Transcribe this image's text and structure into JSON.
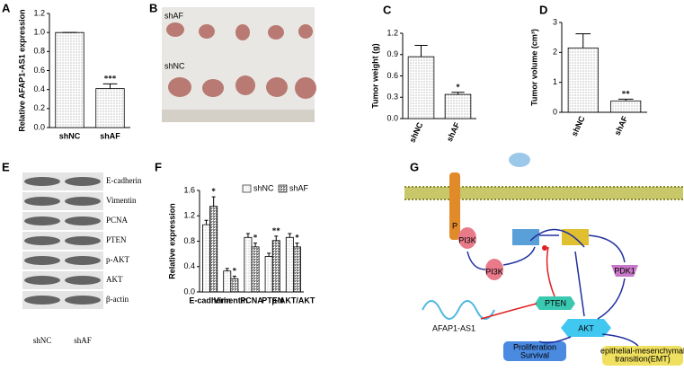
{
  "panels": [
    "A",
    "B",
    "C",
    "D",
    "E",
    "F",
    "G"
  ],
  "chart_data": [
    {
      "type": "bar",
      "ylabel": "Relative AFAP1-AS1 expression",
      "categories": [
        "shNC",
        "shAF"
      ],
      "series": [
        {
          "color": "#666666",
          "values": [
            1.0,
            0.41
          ],
          "errors": [
            0,
            0.05
          ],
          "significance": [
            null,
            "***"
          ]
        }
      ],
      "ylim": [
        0,
        1.2
      ],
      "yticks": [
        {
          "value": 0,
          "label": "0.0"
        },
        0.2,
        0.4,
        0.6,
        0.8,
        {
          "value": 1,
          "label": "1.0"
        },
        1.2
      ]
    },
    {
      "type": "bar",
      "ylabel": "Tumor weight (g)",
      "categories": [
        "shNC",
        "shAF"
      ],
      "series": [
        {
          "color": "#666666",
          "values": [
            0.87,
            0.34
          ],
          "errors": [
            0.16,
            0.03
          ],
          "significance": [
            null,
            "*"
          ]
        }
      ],
      "ylim": [
        0,
        1.2
      ],
      "yticks": [
        {
          "value": 0,
          "label": "0.0"
        },
        0.3,
        0.6,
        0.9,
        1.2
      ]
    },
    {
      "type": "bar",
      "ylabel": "Tumor volume (cm³)",
      "categories": [
        "shNC",
        "shAF"
      ],
      "series": [
        {
          "color": "#666666",
          "values": [
            2.15,
            0.38
          ],
          "errors": [
            0.47,
            0.06
          ],
          "significance": [
            null,
            "**"
          ]
        }
      ],
      "ylim": [
        0,
        3
      ],
      "yticks": [
        0,
        1,
        2,
        3
      ]
    },
    {
      "type": "bar",
      "ylabel": "Relative expression",
      "categories": [
        "E-cadherin",
        "Vimentin",
        "PCNA",
        "PTEN",
        "p-AKT/AKT"
      ],
      "series": [
        {
          "name": "shNC",
          "color": "#888888",
          "values": [
            1.06,
            0.33,
            0.86,
            0.56,
            0.86
          ],
          "errors": [
            0.07,
            0.04,
            0.06,
            0.05,
            0.06
          ],
          "significance": [
            null,
            null,
            null,
            null,
            null
          ]
        },
        {
          "name": "shAF",
          "color": "#333333",
          "values": [
            1.35,
            0.21,
            0.71,
            0.81,
            0.71
          ],
          "errors": [
            0.15,
            0.04,
            0.06,
            0.07,
            0.06
          ],
          "significance": [
            "*",
            "*",
            "*",
            "**",
            "*"
          ]
        }
      ],
      "ylim": [
        0,
        1.6
      ],
      "yticks": [
        {
          "value": 0,
          "label": "0.0"
        },
        0.4,
        0.8,
        1.2,
        1.6
      ],
      "legend": "top-right"
    }
  ],
  "photo": {
    "labels": [
      "shAF",
      "shNC"
    ]
  },
  "blot": {
    "labels": [
      "E-cadherin",
      "Vimentin",
      "PCNA",
      "PTEN",
      "p-AKT",
      "AKT",
      "β-actin"
    ],
    "lanes": [
      "shNC",
      "shAF"
    ]
  },
  "diagram": {
    "labels": [
      "PI3K",
      "PI3K",
      "PDK1",
      "PTEN",
      "AKT",
      "AFAP1-AS1",
      "Proliferation",
      "Survival",
      "epithelial-mesenchymal",
      "transition(EMT)",
      "P"
    ]
  }
}
